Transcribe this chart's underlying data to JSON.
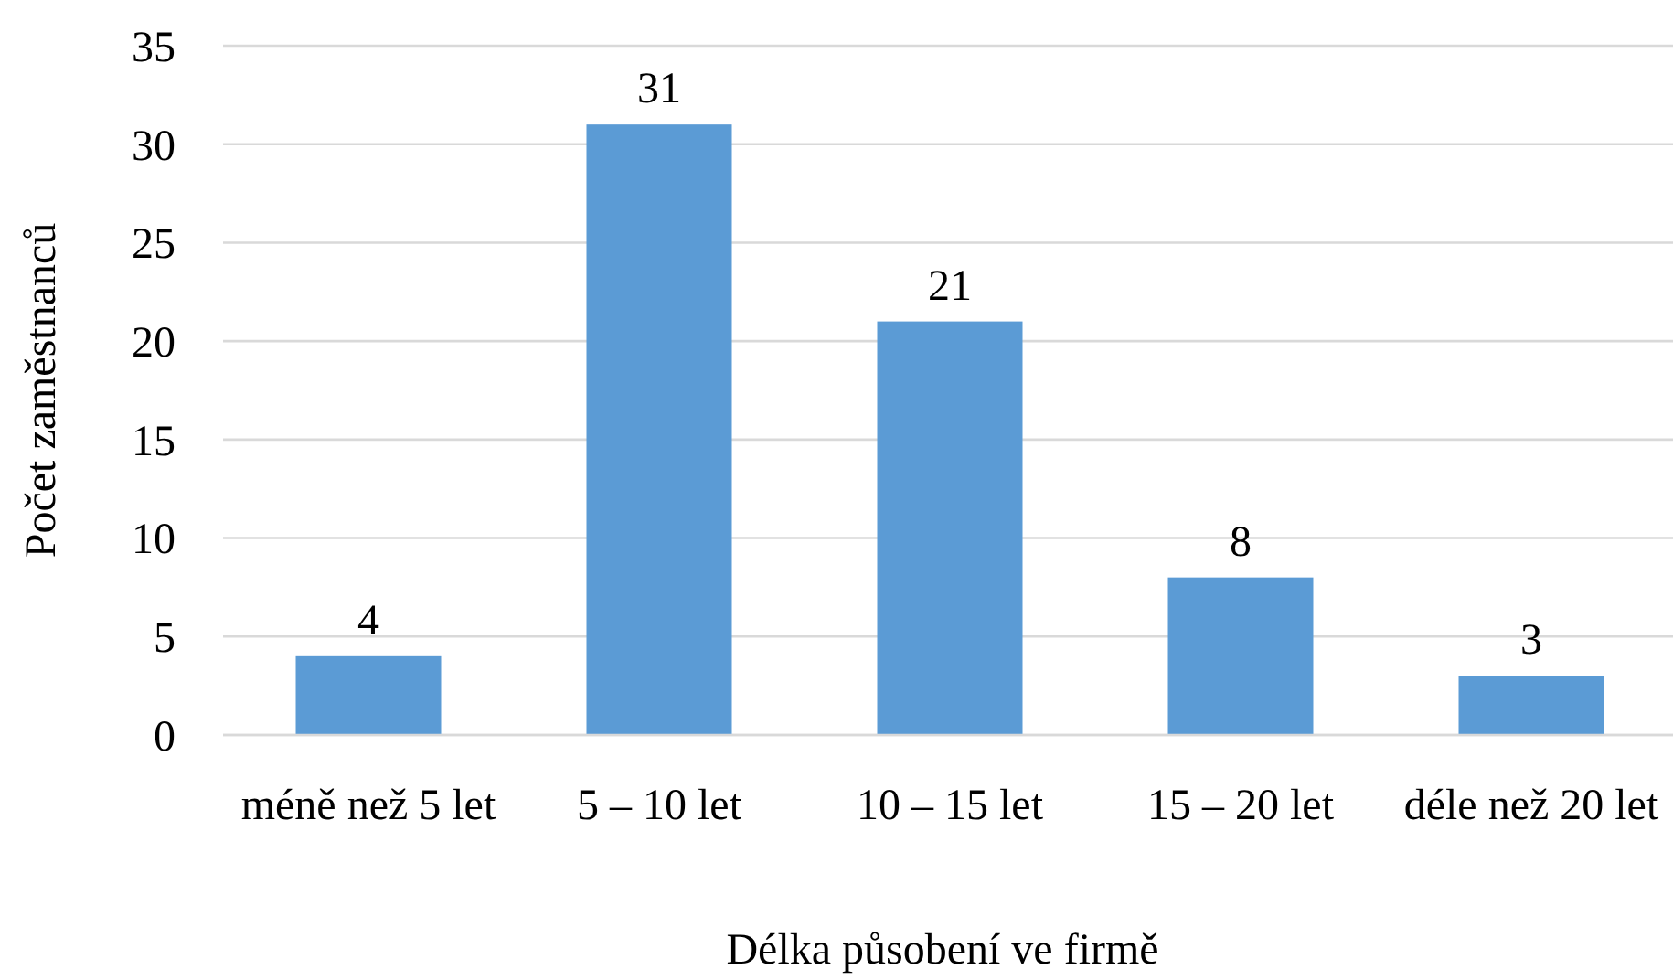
{
  "chart_data": {
    "type": "bar",
    "xlabel": "Délka působení ve firmě",
    "ylabel": "Počet zaměstnanců",
    "categories": [
      "méně než 5 let",
      "5 – 10 let",
      "10 – 15 let",
      "15 – 20 let",
      "déle než 20 let"
    ],
    "values": [
      4,
      31,
      21,
      8,
      3
    ],
    "color": "#5b9bd5",
    "ylim": [
      0,
      35
    ],
    "yticks": [
      0,
      5,
      10,
      15,
      20,
      25,
      30,
      35
    ],
    "grid": "y",
    "data_labels": true
  }
}
